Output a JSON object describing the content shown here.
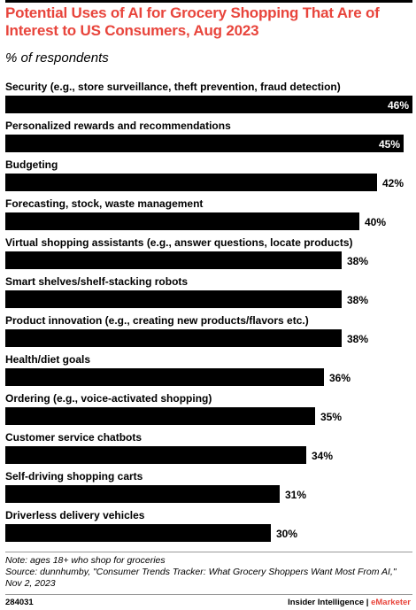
{
  "title": "Potential Uses of AI for Grocery Shopping That Are of Interest to US Consumers, Aug 2023",
  "subtitle": "% of respondents",
  "chart_data": {
    "type": "bar",
    "orientation": "horizontal",
    "categories": [
      "Security (e.g., store surveillance, theft prevention, fraud detection)",
      "Personalized rewards and recommendations",
      "Budgeting",
      "Forecasting, stock, waste management",
      "Virtual shopping assistants (e.g., answer questions, locate products)",
      "Smart shelves/shelf-stacking robots",
      "Product innovation (e.g., creating new products/flavors etc.)",
      "Health/diet goals",
      "Ordering (e.g., voice-activated shopping)",
      "Customer service chatbots",
      "Self-driving shopping carts",
      "Driverless delivery vehicles"
    ],
    "values": [
      46,
      45,
      42,
      40,
      38,
      38,
      38,
      36,
      35,
      34,
      31,
      30
    ],
    "value_labels": [
      "46%",
      "45%",
      "42%",
      "40%",
      "38%",
      "38%",
      "38%",
      "36%",
      "35%",
      "34%",
      "31%",
      "30%"
    ],
    "xlim": [
      0,
      46
    ],
    "bar_color": "#000000",
    "grid": false
  },
  "footer": {
    "note": "Note: ages 18+ who shop for groceries",
    "source": "Source: dunnhumby, \"Consumer Trends Tracker: What Grocery Shoppers Want Most From AI,\" Nov 2, 2023",
    "chart_id": "284031",
    "brand_left": "Insider Intelligence",
    "brand_sep": " | ",
    "brand_right": "eMarketer"
  }
}
